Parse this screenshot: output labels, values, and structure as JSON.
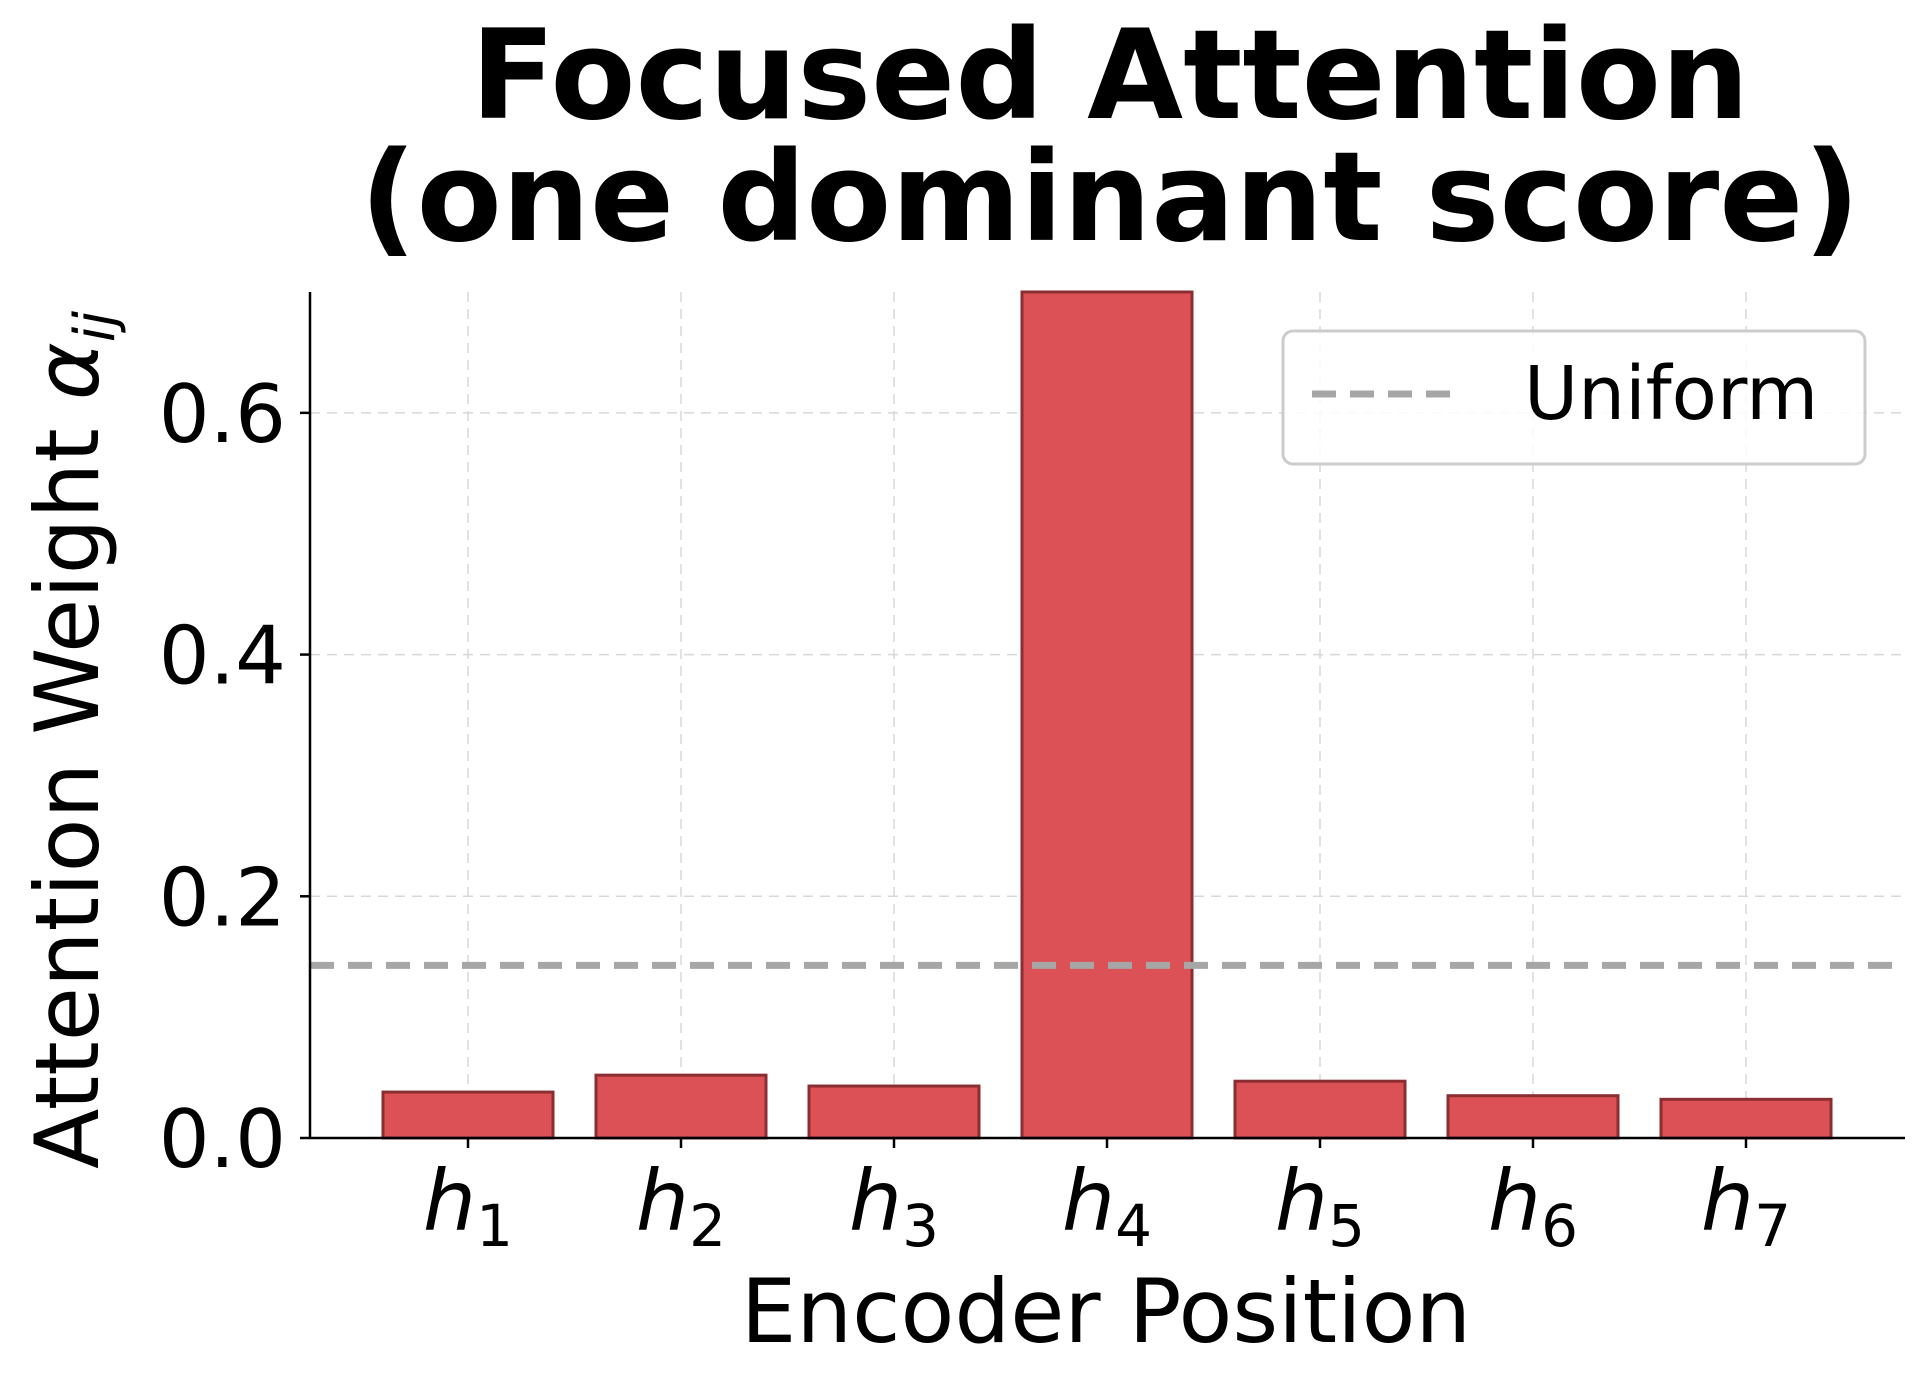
{
  "chart_data": {
    "type": "bar",
    "title_lines": [
      "Focused Attention",
      "(one dominant score)"
    ],
    "xlabel": "Encoder Position",
    "ylabel": {
      "text": "Attention Weight ",
      "symbol": "α",
      "subscript": "ij"
    },
    "categories": [
      {
        "base": "h",
        "sub": "1"
      },
      {
        "base": "h",
        "sub": "2"
      },
      {
        "base": "h",
        "sub": "3"
      },
      {
        "base": "h",
        "sub": "4"
      },
      {
        "base": "h",
        "sub": "5"
      },
      {
        "base": "h",
        "sub": "6"
      },
      {
        "base": "h",
        "sub": "7"
      }
    ],
    "values": [
      0.038,
      0.052,
      0.043,
      0.74,
      0.047,
      0.035,
      0.032
    ],
    "ylim": [
      0,
      0.7
    ],
    "yticks": [
      0.0,
      0.2,
      0.4,
      0.6
    ],
    "ytick_labels": [
      "0.0",
      "0.2",
      "0.4",
      "0.6"
    ],
    "reference_line": {
      "name": "Uniform",
      "value": 0.142857,
      "style": "dashed",
      "color": "#a6a6a6"
    },
    "grid": true,
    "legend_placement": "top-right",
    "bar_color": "#dc5156",
    "bar_edge_color": "#8b2e32"
  }
}
